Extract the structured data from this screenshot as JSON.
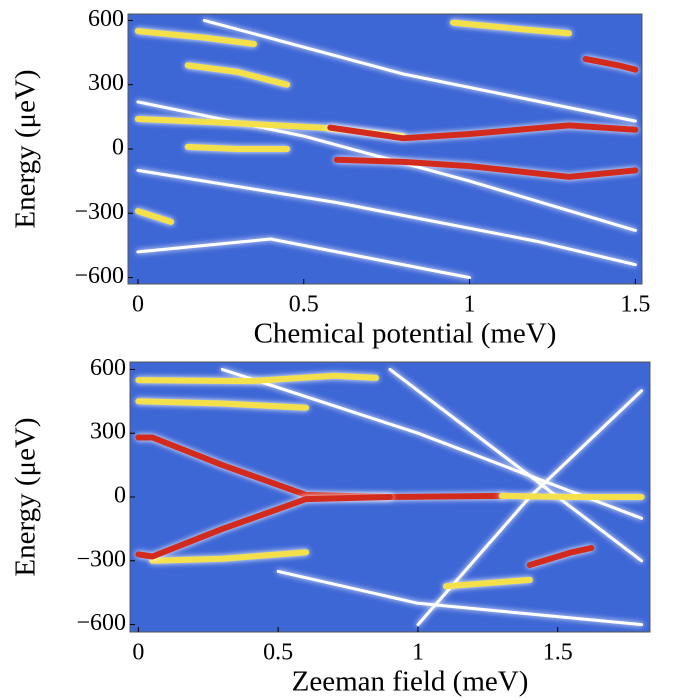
{
  "chart_data": [
    {
      "type": "heatmap-lines",
      "background": "#3e67d6",
      "xlabel": "Chemical potential (meV)",
      "ylabel": "Energy (μeV)",
      "xlim": [
        -0.03,
        1.52
      ],
      "ylim": [
        -630,
        630
      ],
      "xticks": [
        0,
        0.5,
        1,
        1.5
      ],
      "yticks": [
        {
          "value": -600,
          "label": "−600"
        },
        {
          "value": -300,
          "label": "−300"
        },
        0,
        300,
        600
      ],
      "series": [
        {
          "color": "#ffffff",
          "x": [
            0,
            0.5,
            1.0,
            1.5
          ],
          "values": [
            220,
            60,
            -150,
            -380
          ]
        },
        {
          "color": "#ffffff",
          "x": [
            0,
            0.6,
            1.2,
            1.5
          ],
          "values": [
            -100,
            -250,
            -430,
            -540
          ]
        },
        {
          "color": "#ffffff",
          "x": [
            0.2,
            0.8,
            1.5
          ],
          "values": [
            600,
            350,
            130
          ]
        },
        {
          "color": "#ffffff",
          "x": [
            0,
            0.4,
            1.0
          ],
          "values": [
            -480,
            -420,
            -600
          ]
        },
        {
          "color": "#f4e04a",
          "x": [
            0.0,
            0.3,
            0.55,
            0.8
          ],
          "values": [
            140,
            120,
            100,
            60
          ]
        },
        {
          "color": "#f4e04a",
          "x": [
            0.15,
            0.3,
            0.45
          ],
          "values": [
            390,
            360,
            300
          ]
        },
        {
          "color": "#f4e04a",
          "x": [
            0.0,
            0.2,
            0.35
          ],
          "values": [
            550,
            520,
            490
          ]
        },
        {
          "color": "#f4e04a",
          "x": [
            0.95,
            1.15,
            1.3
          ],
          "values": [
            590,
            560,
            540
          ]
        },
        {
          "color": "#d32a1e",
          "x": [
            1.35,
            1.45,
            1.5
          ],
          "values": [
            420,
            390,
            370
          ]
        },
        {
          "color": "#f4e04a",
          "x": [
            0.15,
            0.3,
            0.45
          ],
          "values": [
            10,
            0,
            0
          ]
        },
        {
          "color": "#d32a1e",
          "x": [
            0.58,
            0.8,
            1.0,
            1.3,
            1.5
          ],
          "values": [
            100,
            50,
            70,
            110,
            90
          ]
        },
        {
          "color": "#d32a1e",
          "x": [
            0.6,
            0.8,
            1.0,
            1.3,
            1.5
          ],
          "values": [
            -50,
            -60,
            -80,
            -130,
            -100
          ]
        },
        {
          "color": "#f4e04a",
          "x": [
            0.0,
            0.1
          ],
          "values": [
            -290,
            -340
          ]
        }
      ]
    },
    {
      "type": "heatmap-lines",
      "background": "#3e67d6",
      "xlabel": "Zeeman field (meV)",
      "ylabel": "Energy (μeV)",
      "xlim": [
        -0.03,
        1.83
      ],
      "ylim": [
        -635,
        635
      ],
      "xticks": [
        0,
        0.5,
        1,
        1.5
      ],
      "yticks": [
        {
          "value": -600,
          "label": "−600"
        },
        {
          "value": -300,
          "label": "−300"
        },
        0,
        300,
        600
      ],
      "series": [
        {
          "color": "#ffffff",
          "x": [
            0.3,
            1.0,
            1.8
          ],
          "values": [
            600,
            300,
            -100
          ]
        },
        {
          "color": "#ffffff",
          "x": [
            1.0,
            1.4,
            1.8
          ],
          "values": [
            -600,
            0,
            500
          ]
        },
        {
          "color": "#ffffff",
          "x": [
            0.9,
            1.3,
            1.8
          ],
          "values": [
            600,
            200,
            -300
          ]
        },
        {
          "color": "#ffffff",
          "x": [
            0.5,
            1.0,
            1.8
          ],
          "values": [
            -350,
            -500,
            -600
          ]
        },
        {
          "color": "#f4e04a",
          "x": [
            0.0,
            0.4,
            0.7,
            0.85
          ],
          "values": [
            550,
            545,
            570,
            560
          ]
        },
        {
          "color": "#f4e04a",
          "x": [
            0.0,
            0.3,
            0.6
          ],
          "values": [
            450,
            440,
            420
          ]
        },
        {
          "color": "#f4e04a",
          "x": [
            0.05,
            0.3,
            0.6
          ],
          "values": [
            -300,
            -290,
            -260
          ]
        },
        {
          "color": "#d32a1e",
          "x": [
            0.0,
            0.05,
            0.3,
            0.6,
            0.9,
            1.3
          ],
          "values": [
            280,
            280,
            150,
            10,
            0,
            5
          ]
        },
        {
          "color": "#d32a1e",
          "x": [
            0.0,
            0.05,
            0.3,
            0.6,
            0.9
          ],
          "values": [
            -270,
            -280,
            -150,
            -10,
            0
          ]
        },
        {
          "color": "#f4e04a",
          "x": [
            1.3,
            1.55,
            1.8
          ],
          "values": [
            5,
            0,
            0
          ]
        },
        {
          "color": "#d32a1e",
          "x": [
            1.4,
            1.55,
            1.62
          ],
          "values": [
            -320,
            -260,
            -240
          ]
        },
        {
          "color": "#f4e04a",
          "x": [
            1.1,
            1.4
          ],
          "values": [
            -420,
            -390
          ]
        }
      ]
    }
  ]
}
